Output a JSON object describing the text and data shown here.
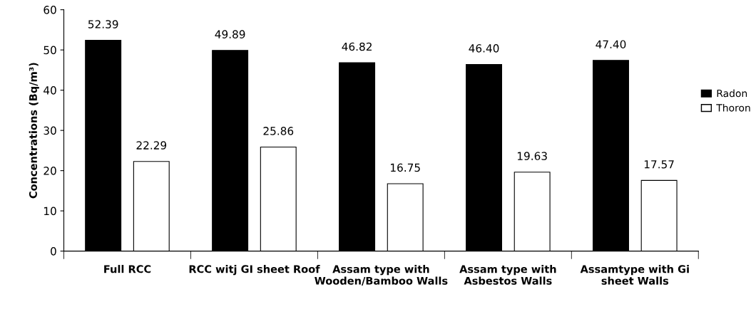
{
  "chart_data": {
    "type": "bar",
    "ylabel": "Concentrations (Bq/m³)",
    "categories": [
      "Full RCC",
      "RCC witj GI sheet Roof",
      "Assam type with Wooden/Bamboo Walls",
      "Assam type with Asbestos Walls",
      "Assamtype with Gi sheet Walls"
    ],
    "series": [
      {
        "name": "Radon",
        "color": "#000000",
        "values": [
          52.39,
          49.89,
          46.82,
          46.4,
          47.4
        ]
      },
      {
        "name": "Thoron",
        "color": "#ffffff",
        "values": [
          22.29,
          25.86,
          16.75,
          19.63,
          17.57
        ]
      }
    ],
    "value_labels": [
      [
        "52.39",
        "49.89",
        "46.82",
        "46.40",
        "47.40"
      ],
      [
        "22.29",
        "25.86",
        "16.75",
        "19.63",
        "17.57"
      ]
    ],
    "ylim": [
      0,
      60
    ],
    "yticks": [
      0,
      10,
      20,
      30,
      40,
      50,
      60
    ],
    "grid": false,
    "legend": "right"
  }
}
